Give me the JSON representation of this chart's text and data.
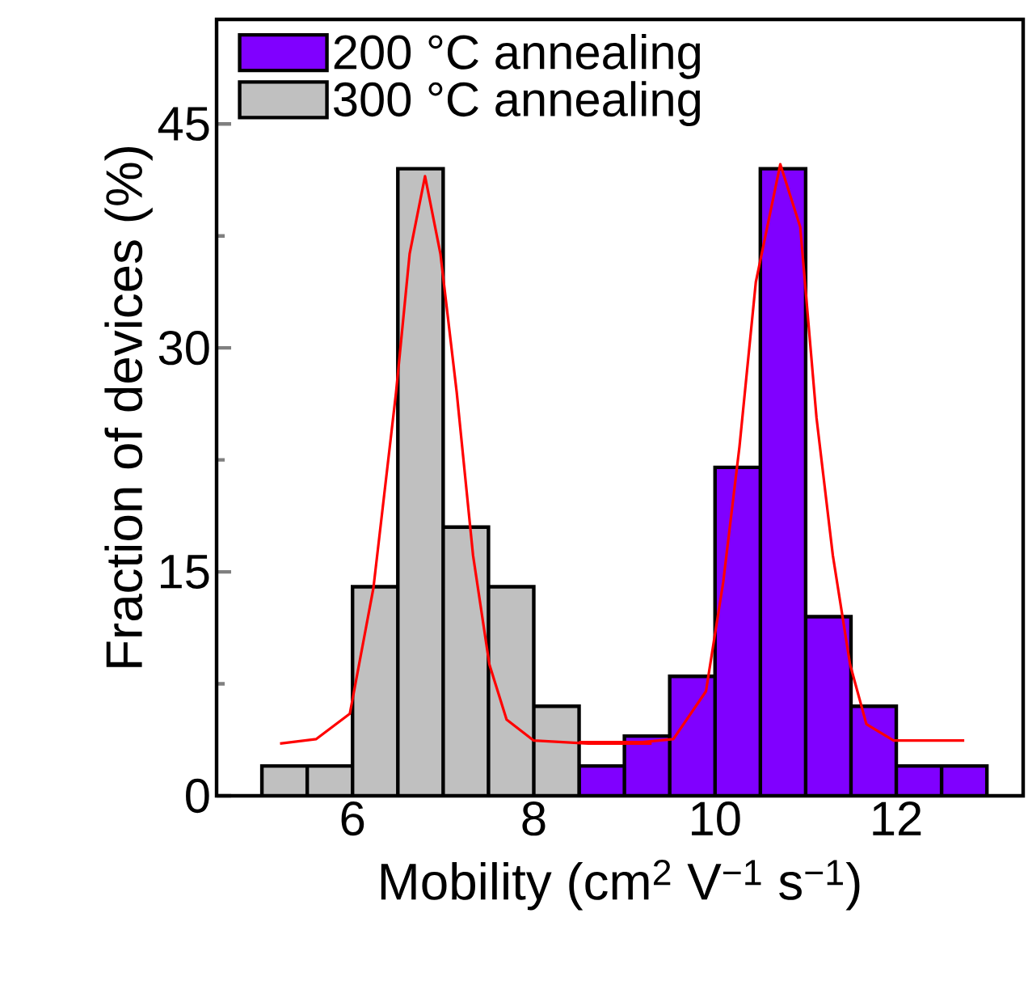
{
  "chart_data": {
    "type": "histogram",
    "xlabel": "Mobility (cm$^{2}$ V$^{−1}$ s$^{−1}$)",
    "ylabel": "Fraction of devices (%)",
    "bins": [
      5.0,
      5.5,
      6.0,
      6.5,
      7.0,
      7.5,
      8.0,
      8.5,
      9.0,
      9.5,
      10.0,
      10.5,
      11.0,
      11.5,
      12.0,
      12.5,
      13.0
    ],
    "xlim": [
      4.5,
      13.4
    ],
    "ylim": [
      0,
      52
    ],
    "xticks": [
      6,
      8,
      10,
      12
    ],
    "yticks": [
      0,
      15,
      30,
      45
    ],
    "legend": "top left",
    "series": [
      {
        "name": "200 °C annealing",
        "color": "#8000ff",
        "values": [
          null,
          null,
          null,
          null,
          null,
          null,
          null,
          2,
          4,
          8,
          22,
          42,
          12,
          6,
          2,
          2
        ]
      },
      {
        "name": "300 °C annealing",
        "color": "#c0c0c0",
        "values": [
          2,
          2,
          14,
          42,
          18,
          14,
          6,
          null,
          null,
          null,
          null,
          null,
          null,
          null,
          null,
          null
        ]
      },
      {
        "type": "line",
        "color": "#ff0000",
        "x": [
          5.2,
          5.6,
          5.97,
          6.23,
          6.48,
          6.63,
          6.8,
          6.97,
          7.15,
          7.33,
          7.51,
          7.7,
          8.0,
          8.6,
          9.3
        ],
        "values": [
          3.5,
          3.8,
          5.5,
          13.9,
          27,
          36.3,
          41.5,
          36.3,
          27,
          16.1,
          8.8,
          5.1,
          3.7,
          3.5,
          3.5
        ]
      },
      {
        "type": "line",
        "color": "#ff0000",
        "x": [
          8.5,
          9.2,
          9.54,
          9.9,
          10.09,
          10.27,
          10.45,
          10.72,
          10.94,
          11.12,
          11.3,
          11.49,
          11.67,
          11.97,
          12.75
        ],
        "values": [
          3.6,
          3.6,
          3.8,
          7,
          14.3,
          23.4,
          34.4,
          42.3,
          38.1,
          25.3,
          16.1,
          8.8,
          4.8,
          3.7,
          3.7
        ]
      }
    ]
  }
}
